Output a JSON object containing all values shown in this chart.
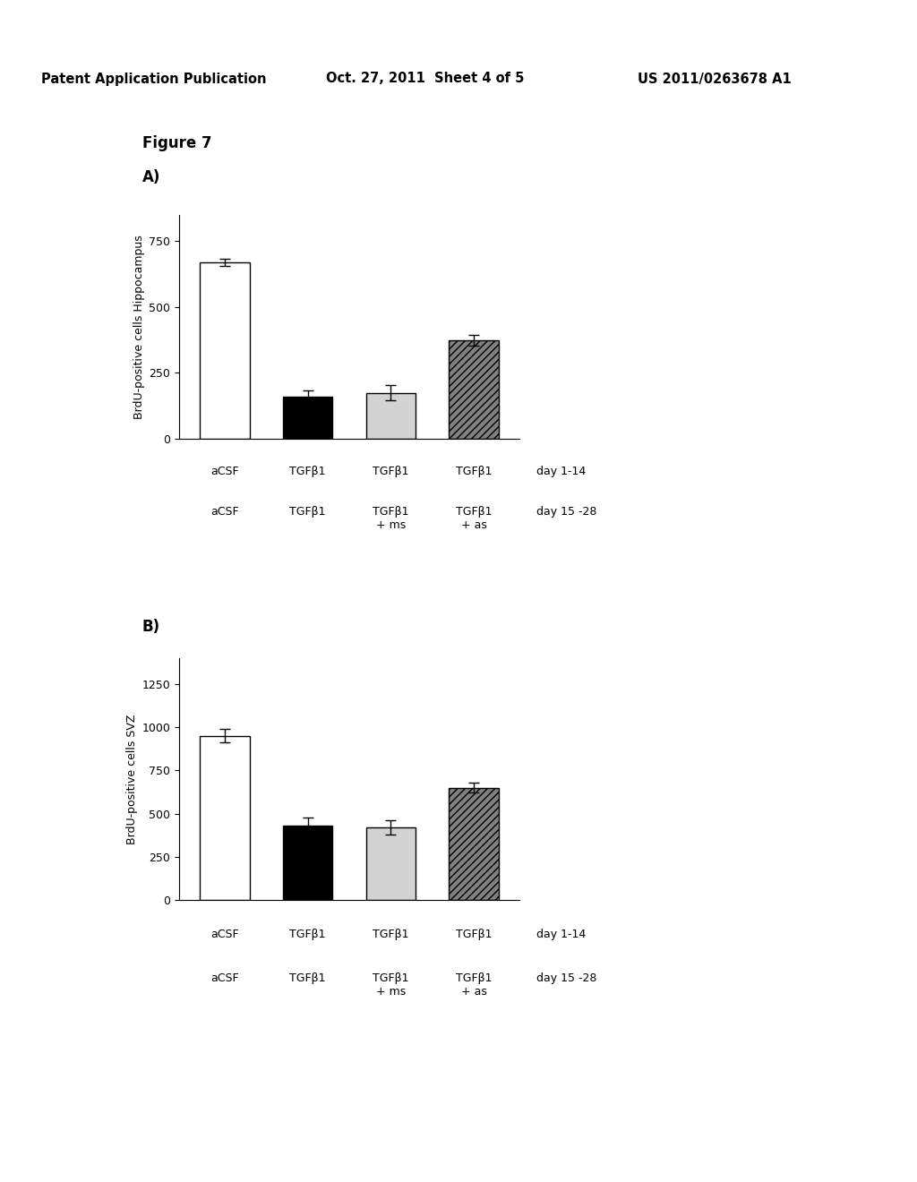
{
  "fig_label": "Figure 7",
  "header_left": "Patent Application Publication",
  "header_center": "Oct. 27, 2011  Sheet 4 of 5",
  "header_right": "US 2011/0263678 A1",
  "panel_A": {
    "label": "A)",
    "ylabel": "BrdU-positive cells Hippocampus",
    "bar_values": [
      670,
      160,
      175,
      375
    ],
    "bar_errors": [
      15,
      25,
      30,
      20
    ],
    "bar_colors": [
      "white",
      "black",
      "lightgray",
      "gray"
    ],
    "bar_hatches": [
      "",
      "",
      "",
      "////"
    ],
    "ylim": [
      0,
      850
    ],
    "yticks": [
      0,
      250,
      500,
      750
    ],
    "bar_labels_row1": [
      "aCSF",
      "TGFβ1",
      "TGFβ1",
      "TGFβ1"
    ],
    "bar_labels_row2": [
      "aCSF",
      "TGFβ1",
      "TGFβ1\n+ ms",
      "TGFβ1\n+ as"
    ],
    "day_label_row1": "day 1-14",
    "day_label_row2": "day 15 -28"
  },
  "panel_B": {
    "label": "B)",
    "ylabel": "BrdU-positive cells SVZ",
    "bar_values": [
      950,
      430,
      420,
      650
    ],
    "bar_errors": [
      40,
      45,
      40,
      30
    ],
    "bar_colors": [
      "white",
      "black",
      "lightgray",
      "gray"
    ],
    "bar_hatches": [
      "",
      "",
      "",
      "////"
    ],
    "ylim": [
      0,
      1400
    ],
    "yticks": [
      0,
      250,
      500,
      750,
      1000,
      1250
    ],
    "bar_labels_row1": [
      "aCSF",
      "TGFβ1",
      "TGFβ1",
      "TGFβ1"
    ],
    "bar_labels_row2": [
      "aCSF",
      "TGFβ1",
      "TGFβ1\n+ ms",
      "TGFβ1\n+ as"
    ],
    "day_label_row1": "day 1-14",
    "day_label_row2": "day 15 -28"
  },
  "bar_width": 0.6,
  "bar_edge_color": "black",
  "bar_edge_width": 1.0,
  "font_size_axis_label": 9,
  "font_size_tick": 9,
  "font_size_header": 10.5,
  "font_size_panel_label": 12,
  "font_size_fig_label": 12,
  "font_size_xlabels": 9,
  "font_size_day_label": 9
}
